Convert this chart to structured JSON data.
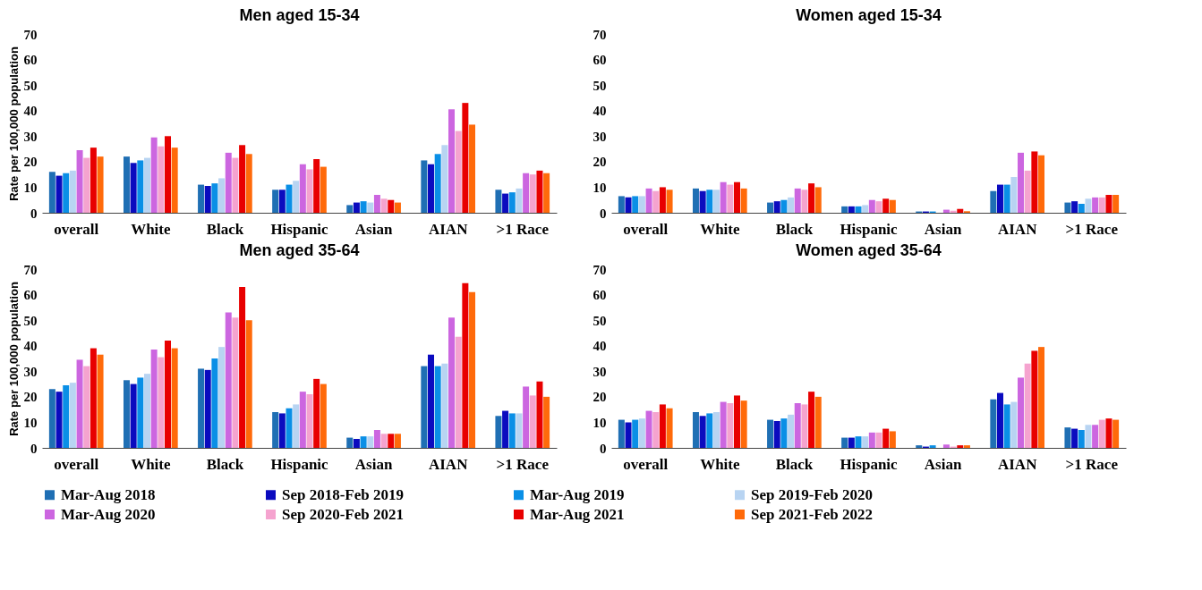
{
  "chart_data": [
    {
      "type": "bar",
      "title": "Men aged 15-34",
      "ylabel": "Rate per 100,000 population",
      "legend": "bottom",
      "categories": [
        "overall",
        "White",
        "Black",
        "Hispanic",
        "Asian",
        "AIAN",
        ">1 Race"
      ],
      "ylim": [
        0,
        70
      ],
      "yticks": [
        0,
        10,
        20,
        30,
        40,
        50,
        60,
        70
      ],
      "series": [
        {
          "name": "Mar-Aug 2018",
          "color": "#1f6fb4",
          "values": [
            16,
            22,
            11,
            9,
            3,
            20.5,
            9
          ]
        },
        {
          "name": "Sep 2018-Feb 2019",
          "color": "#0b0bbf",
          "values": [
            14.5,
            19.5,
            10.5,
            9,
            4,
            19,
            7.5
          ]
        },
        {
          "name": "Mar-Aug 2019",
          "color": "#0a8fe6",
          "values": [
            15.5,
            20.5,
            11.5,
            11,
            4.5,
            23,
            8
          ]
        },
        {
          "name": "Sep 2019-Feb 2020",
          "color": "#b8d4f2",
          "values": [
            16.5,
            21.5,
            13.5,
            12.5,
            4,
            26.5,
            9.5
          ]
        },
        {
          "name": "Mar-Aug 2020",
          "color": "#cc66e0",
          "values": [
            24.5,
            29.5,
            23.5,
            19,
            7,
            40.5,
            15.5
          ]
        },
        {
          "name": "Sep 2020-Feb 2021",
          "color": "#f5a3cf",
          "values": [
            21.5,
            26,
            21.5,
            17,
            5.5,
            32,
            15
          ]
        },
        {
          "name": "Mar-Aug 2021",
          "color": "#e80000",
          "values": [
            25.5,
            30,
            26.5,
            21,
            5,
            43,
            16.5
          ]
        },
        {
          "name": "Sep 2021-Feb 2022",
          "color": "#ff6a0a",
          "values": [
            22,
            25.5,
            23,
            18,
            4,
            34.5,
            15.5
          ]
        }
      ]
    },
    {
      "type": "bar",
      "title": "Women aged 15-34",
      "categories": [
        "overall",
        "White",
        "Black",
        "Hispanic",
        "Asian",
        "AIAN",
        ">1 Race"
      ],
      "ylim": [
        0,
        70
      ],
      "yticks": [
        0,
        10,
        20,
        30,
        40,
        50,
        60,
        70
      ],
      "series": [
        {
          "name": "Mar-Aug 2018",
          "color": "#1f6fb4",
          "values": [
            6.5,
            9.5,
            4,
            2.5,
            0.5,
            8.5,
            4
          ]
        },
        {
          "name": "Sep 2018-Feb 2019",
          "color": "#0b0bbf",
          "values": [
            6,
            8.5,
            4.5,
            2.5,
            0.5,
            11,
            4.5
          ]
        },
        {
          "name": "Mar-Aug 2019",
          "color": "#0a8fe6",
          "values": [
            6.5,
            9,
            5,
            2.5,
            0.5,
            11,
            3.5
          ]
        },
        {
          "name": "Sep 2019-Feb 2020",
          "color": "#b8d4f2",
          "values": [
            6.5,
            9,
            6,
            3,
            null,
            14,
            5.5
          ]
        },
        {
          "name": "Mar-Aug 2020",
          "color": "#cc66e0",
          "values": [
            9.5,
            12,
            9.5,
            5,
            1.2,
            23.5,
            6
          ]
        },
        {
          "name": "Sep 2020-Feb 2021",
          "color": "#f5a3cf",
          "values": [
            8.5,
            11,
            9,
            4.5,
            0.8,
            16.5,
            6
          ]
        },
        {
          "name": "Mar-Aug 2021",
          "color": "#e80000",
          "values": [
            10,
            12,
            11.5,
            5.5,
            1.5,
            24,
            7
          ]
        },
        {
          "name": "Sep 2021-Feb 2022",
          "color": "#ff6a0a",
          "values": [
            9,
            9.5,
            10,
            5,
            0.6,
            22.5,
            7
          ]
        }
      ]
    },
    {
      "type": "bar",
      "title": "Men aged 35-64",
      "ylabel": "Rate per 100,000 population",
      "categories": [
        "overall",
        "White",
        "Black",
        "Hispanic",
        "Asian",
        "AIAN",
        ">1 Race"
      ],
      "ylim": [
        0,
        70
      ],
      "yticks": [
        0,
        10,
        20,
        30,
        40,
        50,
        60,
        70
      ],
      "series": [
        {
          "name": "Mar-Aug 2018",
          "color": "#1f6fb4",
          "values": [
            23,
            26.5,
            31,
            14,
            4,
            32,
            12.5
          ]
        },
        {
          "name": "Sep 2018-Feb 2019",
          "color": "#0b0bbf",
          "values": [
            22,
            25,
            30.5,
            13.5,
            3.5,
            36.5,
            14.5
          ]
        },
        {
          "name": "Mar-Aug 2019",
          "color": "#0a8fe6",
          "values": [
            24.5,
            27.5,
            35,
            15.5,
            4.5,
            32,
            13.5
          ]
        },
        {
          "name": "Sep 2019-Feb 2020",
          "color": "#b8d4f2",
          "values": [
            25.5,
            29,
            39.5,
            17,
            4.5,
            33,
            13.5
          ]
        },
        {
          "name": "Mar-Aug 2020",
          "color": "#cc66e0",
          "values": [
            34.5,
            38.5,
            53,
            22,
            7,
            51,
            24
          ]
        },
        {
          "name": "Sep 2020-Feb 2021",
          "color": "#f5a3cf",
          "values": [
            32,
            35.5,
            51,
            21,
            5.5,
            43.5,
            20.5
          ]
        },
        {
          "name": "Mar-Aug 2021",
          "color": "#e80000",
          "values": [
            39,
            42,
            63,
            27,
            5.5,
            64.5,
            26
          ]
        },
        {
          "name": "Sep 2021-Feb 2022",
          "color": "#ff6a0a",
          "values": [
            36.5,
            39,
            50,
            25,
            5.5,
            61,
            20
          ]
        }
      ]
    },
    {
      "type": "bar",
      "title": "Women aged 35-64",
      "categories": [
        "overall",
        "White",
        "Black",
        "Hispanic",
        "Asian",
        "AIAN",
        ">1 Race"
      ],
      "ylim": [
        0,
        70
      ],
      "yticks": [
        0,
        10,
        20,
        30,
        40,
        50,
        60,
        70
      ],
      "series": [
        {
          "name": "Mar-Aug 2018",
          "color": "#1f6fb4",
          "values": [
            11,
            14,
            11,
            4,
            1,
            19,
            8
          ]
        },
        {
          "name": "Sep 2018-Feb 2019",
          "color": "#0b0bbf",
          "values": [
            10,
            12.5,
            10.5,
            4,
            0.5,
            21.5,
            7.5
          ]
        },
        {
          "name": "Mar-Aug 2019",
          "color": "#0a8fe6",
          "values": [
            11,
            13.5,
            11.5,
            4.5,
            1,
            17,
            7
          ]
        },
        {
          "name": "Sep 2019-Feb 2020",
          "color": "#b8d4f2",
          "values": [
            11.5,
            14,
            13,
            4.5,
            null,
            18,
            9
          ]
        },
        {
          "name": "Mar-Aug 2020",
          "color": "#cc66e0",
          "values": [
            14.5,
            18,
            17.5,
            6,
            1.3,
            27.5,
            9
          ]
        },
        {
          "name": "Sep 2020-Feb 2021",
          "color": "#f5a3cf",
          "values": [
            14,
            17.5,
            17,
            6,
            0.5,
            33,
            11
          ]
        },
        {
          "name": "Mar-Aug 2021",
          "color": "#e80000",
          "values": [
            17,
            20.5,
            22,
            7.5,
            1,
            38,
            11.5
          ]
        },
        {
          "name": "Sep 2021-Feb 2022",
          "color": "#ff6a0a",
          "values": [
            15.5,
            18.5,
            20,
            6.5,
            1,
            39.5,
            11
          ]
        }
      ]
    }
  ]
}
